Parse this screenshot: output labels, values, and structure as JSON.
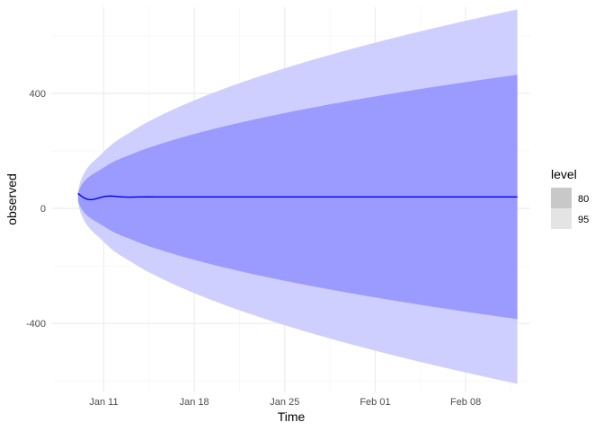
{
  "chart_data": {
    "type": "area",
    "title": "",
    "xlabel": "Time",
    "ylabel": "observed",
    "x_range": [
      "2023-01-07",
      "2023-02-13"
    ],
    "ylim": [
      -640,
      700
    ],
    "x_ticks": [
      {
        "date": "2023-01-11",
        "label": "Jan 11"
      },
      {
        "date": "2023-01-18",
        "label": "Jan 18"
      },
      {
        "date": "2023-01-25",
        "label": "Jan 25"
      },
      {
        "date": "2023-02-01",
        "label": "Feb 01"
      },
      {
        "date": "2023-02-08",
        "label": "Feb 08"
      }
    ],
    "y_ticks": [
      {
        "value": -400,
        "label": "-400"
      },
      {
        "value": 0,
        "label": "0"
      },
      {
        "value": 400,
        "label": "400"
      }
    ],
    "grid": true,
    "forecast": {
      "start": "2023-01-09",
      "end": "2023-02-12",
      "start_value": 52,
      "mean_value": 40,
      "band_80_end": [
        -385,
        465
      ],
      "band_95_end": [
        -610,
        692
      ]
    },
    "legend": {
      "title": "level",
      "placement": "right",
      "items": [
        {
          "label": "80",
          "color": "#c8c8c8"
        },
        {
          "label": "95",
          "color": "#e4e4e4"
        }
      ]
    },
    "colors": {
      "band_95": "#cfcfff",
      "band_80": "#9b9bff",
      "mean_line": "#0000ee",
      "grid_major": "#ebebeb",
      "grid_minor": "#f3f3f3"
    }
  }
}
